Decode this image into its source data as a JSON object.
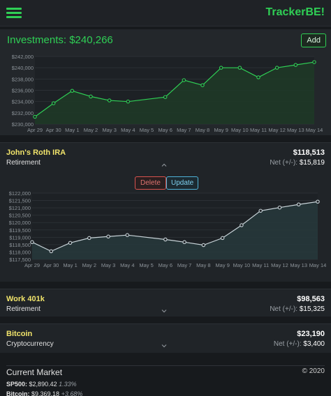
{
  "app": {
    "brand": "TrackerBE!"
  },
  "investments": {
    "title": "Investments: $240,266",
    "add_label": "Add",
    "chart_data": {
      "type": "area",
      "categories": [
        "Apr 29",
        "Apr 30",
        "May 1",
        "May 2",
        "May 3",
        "May 4",
        "May 5",
        "May 6",
        "May 7",
        "May 8",
        "May 9",
        "May 10",
        "May 11",
        "May 12",
        "May 13",
        "May 14"
      ],
      "y_ticks": [
        "$242,000",
        "$240,000",
        "$238,000",
        "$236,000",
        "$234,000",
        "$232,000",
        "$230,000"
      ],
      "ylim": [
        230000,
        242000
      ],
      "values": [
        231300,
        233700,
        235900,
        234900,
        234200,
        234000,
        null,
        234800,
        237800,
        236900,
        240000,
        240000,
        238300,
        240000,
        240500,
        241000
      ],
      "color": "#2fcf55",
      "fill": "#1f3a27"
    }
  },
  "accounts": [
    {
      "name": "John's Roth IRA",
      "type": "Retirement",
      "value": "$118,513",
      "net_label": "Net (+/-):",
      "net_value": "$15,819",
      "expanded": true,
      "delete_label": "Delete",
      "update_label": "Update",
      "chart_data": {
        "type": "area",
        "categories": [
          "Apr 29",
          "Apr 30",
          "May 1",
          "May 2",
          "May 3",
          "May 4",
          "May 5",
          "May 6",
          "May 7",
          "May 8",
          "May 9",
          "May 10",
          "May 11",
          "May 12",
          "May 13",
          "May 14"
        ],
        "y_ticks": [
          "$122,000",
          "$121,500",
          "$121,000",
          "$120,500",
          "$120,000",
          "$119,500",
          "$119,000",
          "$118,500",
          "$118,000",
          "$117,500"
        ],
        "ylim": [
          117500,
          122000
        ],
        "values": [
          118670,
          118050,
          118620,
          118950,
          119050,
          119150,
          null,
          118850,
          118670,
          118470,
          118950,
          119820,
          120800,
          121020,
          121230,
          121420
        ],
        "color": "#c8d3d8",
        "fill": "#27383c"
      }
    },
    {
      "name": "Work 401k",
      "type": "Retirement",
      "value": "$98,563",
      "net_label": "Net (+/-):",
      "net_value": "$15,325",
      "expanded": false
    },
    {
      "name": "Bitcoin",
      "type": "Cryptocurrency",
      "value": "$23,190",
      "net_label": "Net (+/-):",
      "net_value": "$3,400",
      "expanded": false
    }
  ],
  "market": {
    "title": "Current Market",
    "copyright": "© 2020",
    "tickers": [
      {
        "symbol": "SP500:",
        "price": "$2,890.42",
        "change": "1.33%"
      },
      {
        "symbol": "Bitcoin:",
        "price": "$9,369.18",
        "change": "+3.68%"
      }
    ]
  }
}
